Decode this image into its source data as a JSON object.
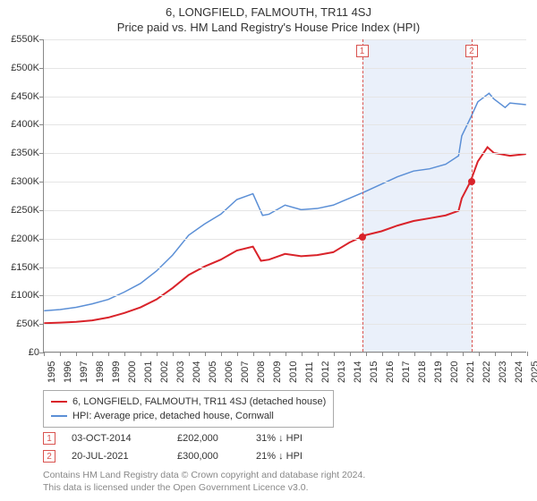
{
  "title": "6, LONGFIELD, FALMOUTH, TR11 4SJ",
  "subtitle": "Price paid vs. HM Land Registry's House Price Index (HPI)",
  "chart": {
    "type": "line",
    "x_axis": {
      "min_year": 1995,
      "max_year": 2025,
      "ticks": [
        1995,
        1996,
        1997,
        1998,
        1999,
        2000,
        2001,
        2002,
        2003,
        2004,
        2005,
        2006,
        2007,
        2008,
        2009,
        2010,
        2011,
        2012,
        2013,
        2014,
        2015,
        2016,
        2017,
        2018,
        2019,
        2020,
        2021,
        2022,
        2023,
        2024,
        2025
      ],
      "fontsize": 11,
      "rotation": -90
    },
    "y_axis": {
      "min": 0,
      "max": 550000,
      "tick_step": 50000,
      "labels": [
        "£0",
        "£50K",
        "£100K",
        "£150K",
        "£200K",
        "£250K",
        "£300K",
        "£350K",
        "£400K",
        "£450K",
        "£500K",
        "£550K"
      ],
      "fontsize": 11
    },
    "grid_color": "#e5e5e5",
    "background_color": "#ffffff",
    "series": [
      {
        "name": "price_paid",
        "label": "6, LONGFIELD, FALMOUTH, TR11 4SJ (detached house)",
        "color": "#d9232a",
        "width": 2,
        "data": [
          [
            1995,
            50000
          ],
          [
            1996,
            51000
          ],
          [
            1997,
            52500
          ],
          [
            1998,
            55000
          ],
          [
            1999,
            60000
          ],
          [
            2000,
            68000
          ],
          [
            2001,
            78000
          ],
          [
            2002,
            92000
          ],
          [
            2003,
            112000
          ],
          [
            2004,
            135000
          ],
          [
            2005,
            150000
          ],
          [
            2006,
            162000
          ],
          [
            2007,
            178000
          ],
          [
            2008,
            185000
          ],
          [
            2008.5,
            160000
          ],
          [
            2009,
            162000
          ],
          [
            2010,
            172000
          ],
          [
            2011,
            168000
          ],
          [
            2012,
            170000
          ],
          [
            2013,
            175000
          ],
          [
            2014,
            192000
          ],
          [
            2014.75,
            202000
          ],
          [
            2015,
            205000
          ],
          [
            2016,
            212000
          ],
          [
            2017,
            222000
          ],
          [
            2018,
            230000
          ],
          [
            2019,
            235000
          ],
          [
            2020,
            240000
          ],
          [
            2020.8,
            248000
          ],
          [
            2021,
            270000
          ],
          [
            2021.55,
            300000
          ],
          [
            2022,
            335000
          ],
          [
            2022.6,
            360000
          ],
          [
            2023,
            350000
          ],
          [
            2024,
            345000
          ],
          [
            2025,
            348000
          ]
        ]
      },
      {
        "name": "hpi",
        "label": "HPI: Average price, detached house, Cornwall",
        "color": "#5b8fd6",
        "width": 1.5,
        "data": [
          [
            1995,
            72000
          ],
          [
            1996,
            74000
          ],
          [
            1997,
            78000
          ],
          [
            1998,
            84000
          ],
          [
            1999,
            92000
          ],
          [
            2000,
            105000
          ],
          [
            2001,
            120000
          ],
          [
            2002,
            142000
          ],
          [
            2003,
            170000
          ],
          [
            2004,
            205000
          ],
          [
            2005,
            225000
          ],
          [
            2006,
            242000
          ],
          [
            2007,
            268000
          ],
          [
            2008,
            278000
          ],
          [
            2008.6,
            240000
          ],
          [
            2009,
            242000
          ],
          [
            2010,
            258000
          ],
          [
            2011,
            250000
          ],
          [
            2012,
            252000
          ],
          [
            2013,
            258000
          ],
          [
            2014,
            270000
          ],
          [
            2015,
            282000
          ],
          [
            2016,
            295000
          ],
          [
            2017,
            308000
          ],
          [
            2018,
            318000
          ],
          [
            2019,
            322000
          ],
          [
            2020,
            330000
          ],
          [
            2020.8,
            345000
          ],
          [
            2021,
            380000
          ],
          [
            2021.6,
            415000
          ],
          [
            2022,
            440000
          ],
          [
            2022.7,
            455000
          ],
          [
            2023,
            445000
          ],
          [
            2023.7,
            430000
          ],
          [
            2024,
            438000
          ],
          [
            2025,
            435000
          ]
        ]
      }
    ],
    "transactions": [
      {
        "num": "1",
        "year": 2014.75,
        "price": 202000,
        "date": "03-OCT-2014",
        "price_label": "£202,000",
        "diff": "31% ↓ HPI"
      },
      {
        "num": "2",
        "year": 2021.55,
        "price": 300000,
        "date": "20-JUL-2021",
        "price_label": "£300,000",
        "diff": "21% ↓ HPI"
      }
    ],
    "shaded_region": {
      "from_year": 2014.75,
      "to_year": 2021.55,
      "color": "#eaf0fa"
    },
    "point_color": "#d9232a"
  },
  "footer": {
    "line1": "Contains HM Land Registry data © Crown copyright and database right 2024.",
    "line2": "This data is licensed under the Open Government Licence v3.0."
  }
}
